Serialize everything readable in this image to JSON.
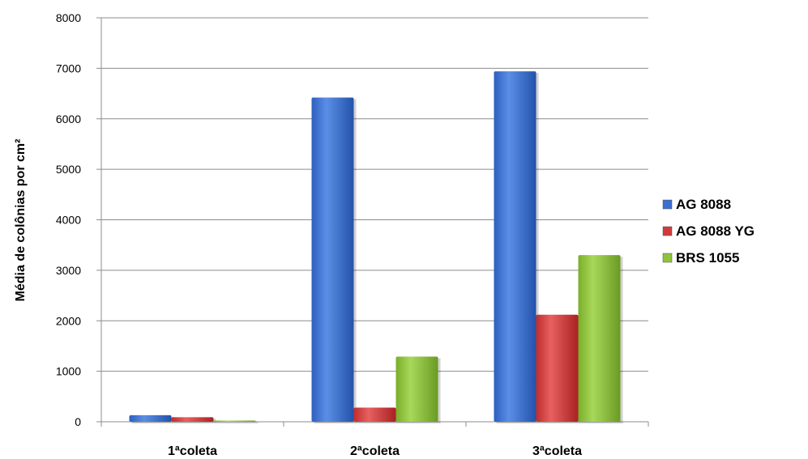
{
  "chart_data": {
    "type": "bar",
    "ylabel": "Média de colônias por cm²",
    "ylim": [
      0,
      8000
    ],
    "yticks": [
      "0",
      "1000",
      "2000",
      "3000",
      "4000",
      "5000",
      "6000",
      "7000",
      "8000"
    ],
    "categories": [
      "1ªcoleta",
      "2ªcoleta",
      "3ªcoleta"
    ],
    "grid": true,
    "legend_position": "right",
    "series": [
      {
        "name": "AG 8088",
        "color": "#3a6fd1",
        "values": [
          130,
          6420,
          6940
        ]
      },
      {
        "name": "AG 8088 YG",
        "color": "#d23a3a",
        "values": [
          90,
          280,
          2120
        ]
      },
      {
        "name": "BRS 1055",
        "color": "#8ec33a",
        "values": [
          20,
          1290,
          3300
        ]
      }
    ]
  }
}
